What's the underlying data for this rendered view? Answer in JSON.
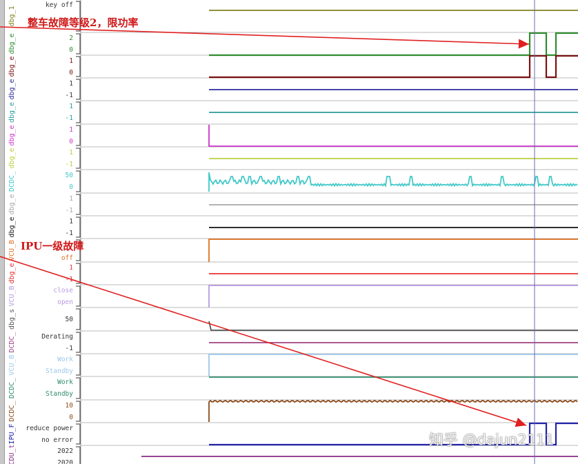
{
  "annotations": [
    {
      "text": "整车故障等级2，限功率"
    },
    {
      "text": "IPU一级故障"
    }
  ],
  "watermark": "知乎 @dajun2111",
  "arrow_color": "#e02020",
  "cursor_color": "#6a6ab0",
  "lanes": [
    {
      "name": "dbg_1",
      "color": "#808020",
      "scale": [
        "key off"
      ]
    },
    {
      "name": "dbg_e",
      "color": "#2e8b2e",
      "scale": [
        "2",
        "0"
      ]
    },
    {
      "name": "dbg_e",
      "color": "#7a1010",
      "scale": [
        "1",
        "0"
      ]
    },
    {
      "name": "dbg_e",
      "color": "#2b2b9a",
      "scale": [
        "1",
        "-1"
      ]
    },
    {
      "name": "dbg_e",
      "color": "#2a9a9a",
      "scale": [
        "1",
        "-1"
      ]
    },
    {
      "name": "dbg_e",
      "color": "#cc33cc",
      "scale": [
        "1",
        "0"
      ]
    },
    {
      "name": "dbg_e",
      "color": "#b8d040",
      "scale": [
        "1",
        "-1"
      ]
    },
    {
      "name": "DCDC_",
      "color": "#40c8c8",
      "scale": [
        "50",
        "0"
      ]
    },
    {
      "name": "dbg_e",
      "color": "#a8a8a8",
      "scale": [
        "1",
        "-1"
      ]
    },
    {
      "name": "dbg_e",
      "color": "#111111",
      "scale": [
        "1",
        "-1"
      ]
    },
    {
      "name": "VCU_B",
      "color": "#e07020",
      "scale": [
        "off"
      ]
    },
    {
      "name": "dbg_e",
      "color": "#e83030",
      "scale": [
        "1",
        "-1"
      ]
    },
    {
      "name": "VCU_B",
      "color": "#b89ae0",
      "scale": [
        "close",
        "open"
      ]
    },
    {
      "name": "dbg_s",
      "color": "#555555",
      "scale": [
        "50"
      ]
    },
    {
      "name": "DCDC_",
      "color": "#a04080",
      "scale": [
        "Derating",
        "-1"
      ]
    },
    {
      "name": "VCU_B",
      "color": "#9cc8ec",
      "scale": [
        "Work",
        "Standby"
      ]
    },
    {
      "name": "DCDC_",
      "color": "#2e8b6a",
      "scale": [
        "Work",
        "Standby"
      ]
    },
    {
      "name": "DCDC_",
      "color": "#8b4a1a",
      "scale": [
        "10",
        "0"
      ]
    },
    {
      "name": "IPU_F",
      "color": "#2222aa",
      "scale": [
        "reduce power",
        "no error"
      ]
    },
    {
      "name": "CDU_t",
      "color": "#8a2a8a",
      "scale": [
        "2022",
        "2020"
      ]
    }
  ]
}
